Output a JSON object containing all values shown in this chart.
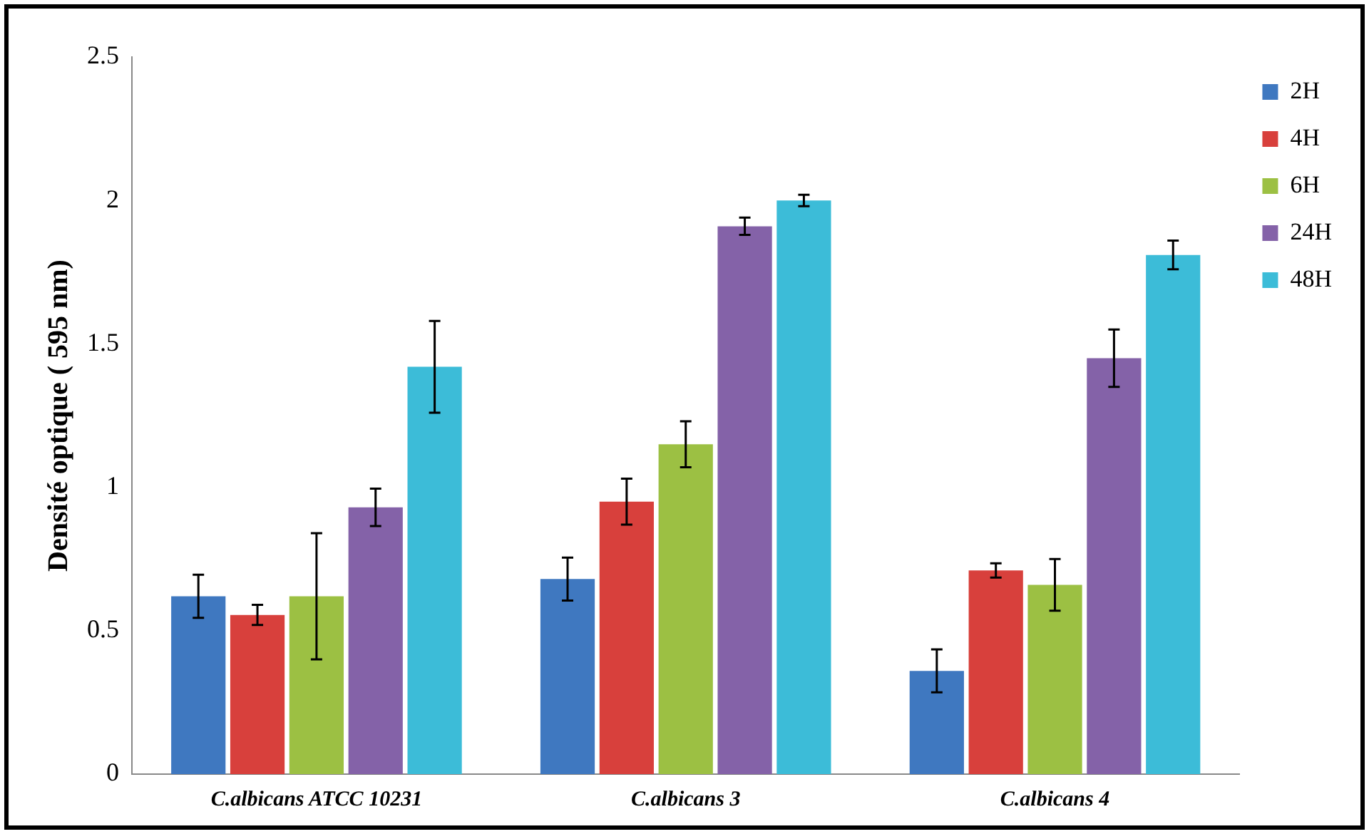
{
  "chart_data": {
    "type": "bar",
    "ylabel": "Densité optique ( 595 nm)",
    "categories": [
      "C.albicans ATCC 10231",
      "C.albicans 3",
      "C.albicans 4"
    ],
    "series": [
      {
        "name": "2H",
        "color": "#3f78c0",
        "values": [
          0.62,
          0.68,
          0.36
        ],
        "errors": [
          0.075,
          0.075,
          0.075
        ]
      },
      {
        "name": "4H",
        "color": "#d8403c",
        "values": [
          0.555,
          0.95,
          0.71
        ],
        "errors": [
          0.035,
          0.08,
          0.025
        ]
      },
      {
        "name": "6H",
        "color": "#9cc043",
        "values": [
          0.62,
          1.15,
          0.66
        ],
        "errors": [
          0.22,
          0.08,
          0.09
        ]
      },
      {
        "name": "24H",
        "color": "#8462a8",
        "values": [
          0.93,
          1.91,
          1.45
        ],
        "errors": [
          0.065,
          0.03,
          0.1
        ]
      },
      {
        "name": "48H",
        "color": "#3cbcd8",
        "values": [
          1.42,
          2.0,
          1.81
        ],
        "errors": [
          0.16,
          0.02,
          0.05
        ]
      }
    ],
    "ylim": [
      0,
      2.5
    ],
    "yticks": [
      0,
      0.5,
      1,
      1.5,
      2,
      2.5
    ],
    "grid": false,
    "legend": "top right"
  }
}
